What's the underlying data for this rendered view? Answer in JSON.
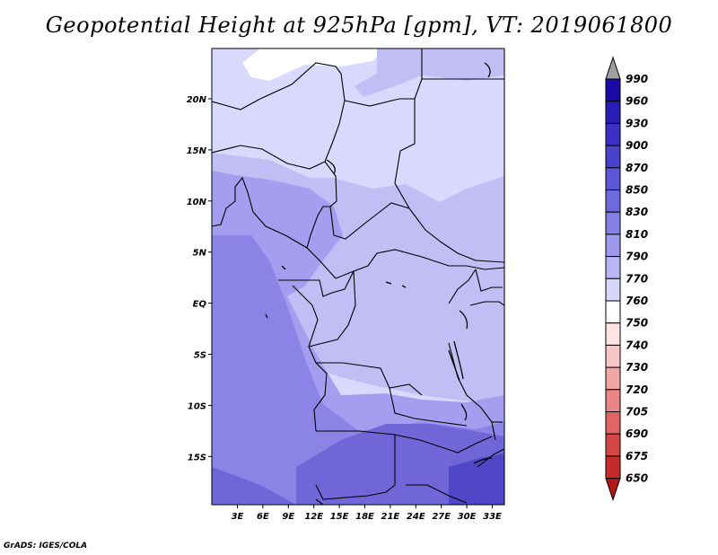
{
  "title": "Geopotential Height at 925hPa [gpm], VT: 2019061800",
  "credit": "GrADS: IGES/COLA",
  "map": {
    "lon_labels": [
      "3E",
      "6E",
      "9E",
      "12E",
      "15E",
      "18E",
      "21E",
      "24E",
      "27E",
      "30E",
      "33E"
    ],
    "lat_labels": [
      "20N",
      "15N",
      "10N",
      "5N",
      "EQ",
      "5S",
      "10S",
      "15S"
    ],
    "colors": {
      "c770": "#d9d9ff",
      "c790": "#c1bef6",
      "c810": "#a59ef0",
      "c830": "#8c83e6",
      "c850": "#7066d8",
      "c870": "#4f47c6",
      "white": "#ffffff",
      "border": "#000000"
    }
  },
  "colorbar": {
    "levels": [
      "990",
      "960",
      "930",
      "900",
      "870",
      "850",
      "830",
      "810",
      "790",
      "770",
      "760",
      "750",
      "740",
      "730",
      "720",
      "705",
      "690",
      "675",
      "650"
    ],
    "colors": [
      "#1c0aa8",
      "#2a1cb6",
      "#3a2fc2",
      "#4a42cc",
      "#5d56d6",
      "#6f69de",
      "#8580e4",
      "#9e99ec",
      "#bab6f3",
      "#d8d6fa",
      "#ffffff",
      "#fde3e3",
      "#f8c6c6",
      "#f2a7a7",
      "#ea8686",
      "#e06464",
      "#d44646",
      "#c52b2b",
      "#b01818"
    ],
    "top_arrow_color": "#a0a0a0",
    "bottom_arrow_color": "#b01818"
  }
}
